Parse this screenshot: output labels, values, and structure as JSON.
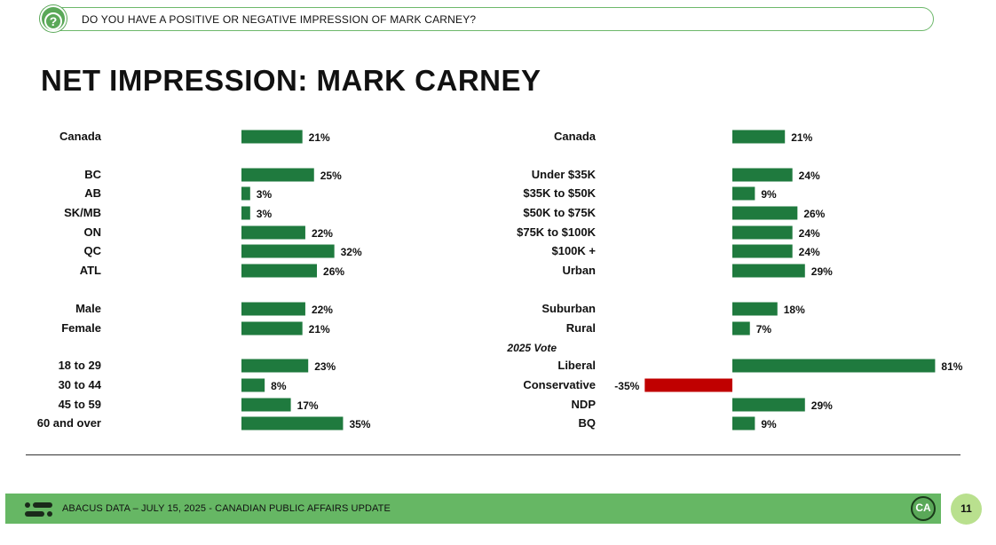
{
  "question": {
    "icon": "question-circle-icon",
    "text": "DO YOU HAVE A POSITIVE OR NEGATIVE IMPRESSION OF MARK CARNEY?"
  },
  "title": "NET IMPRESSION: MARK CARNEY",
  "colors": {
    "positive": "#1f7a3e",
    "negative": "#c00000",
    "accent": "#66b764"
  },
  "chart_data": [
    {
      "type": "bar",
      "orientation": "horizontal",
      "title": "",
      "xlabel": "",
      "ylabel": "",
      "unit": "%",
      "categories": [
        "Canada",
        "BC",
        "AB",
        "SK/MB",
        "ON",
        "QC",
        "ATL",
        "Male",
        "Female",
        "18 to 29",
        "30 to 44",
        "45 to 59",
        "60 and over"
      ],
      "values": [
        21,
        25,
        3,
        3,
        22,
        32,
        26,
        22,
        21,
        23,
        8,
        17,
        35
      ],
      "value_labels": [
        "21%",
        "25%",
        "3%",
        "3%",
        "22%",
        "32%",
        "26%",
        "22%",
        "21%",
        "23%",
        "8%",
        "17%",
        "35%"
      ],
      "grid": false
    },
    {
      "type": "bar",
      "orientation": "horizontal",
      "title": "",
      "xlabel": "",
      "ylabel": "",
      "unit": "%",
      "categories": [
        "Canada",
        "Under $35K",
        "$35K to $50K",
        "$50K to $75K",
        "$75K to $100K",
        "$100K +",
        "Urban",
        "Suburban",
        "Rural",
        "Liberal",
        "Conservative",
        "NDP",
        "BQ"
      ],
      "values": [
        21,
        24,
        9,
        26,
        24,
        24,
        29,
        18,
        7,
        81,
        -35,
        29,
        9
      ],
      "value_labels": [
        "21%",
        "24%",
        "9%",
        "26%",
        "24%",
        "24%",
        "29%",
        "18%",
        "7%",
        "81%",
        "-35%",
        "29%",
        "9%"
      ],
      "group_headers": [
        {
          "before": "Liberal",
          "text": "2025 Vote"
        }
      ],
      "grid": false
    }
  ],
  "footer": {
    "logo_icon": "abacus-logo-icon",
    "text": "ABACUS DATA – JULY 15, 2025 - CANADIAN PUBLIC AFFAIRS UPDATE",
    "badge": "CA",
    "page_number": "11"
  }
}
